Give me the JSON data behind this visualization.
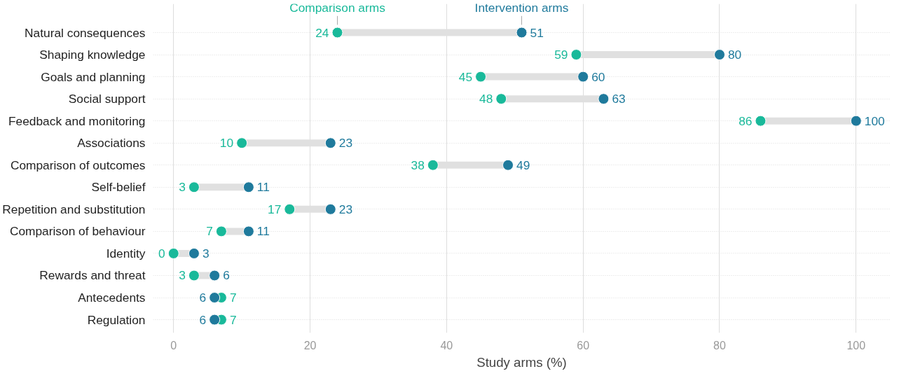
{
  "chart_data": {
    "type": "scatter",
    "orientation": "horizontal",
    "xlabel": "Study arms (%)",
    "categories": [
      "Natural consequences",
      "Shaping knowledge",
      "Goals and planning",
      "Social support",
      "Feedback and monitoring",
      "Associations",
      "Comparison of outcomes",
      "Self-belief",
      "Repetition and substitution",
      "Comparison of behaviour",
      "Identity",
      "Rewards and threat",
      "Antecedents",
      "Regulation"
    ],
    "series": [
      {
        "name": "Comparison arms",
        "color": "#19b99a",
        "values": [
          24,
          59,
          45,
          48,
          86,
          10,
          38,
          3,
          17,
          7,
          0,
          3,
          7,
          7
        ]
      },
      {
        "name": "Intervention arms",
        "color": "#1f7a9c",
        "values": [
          51,
          80,
          60,
          63,
          100,
          23,
          49,
          11,
          23,
          11,
          3,
          6,
          6,
          6
        ]
      }
    ],
    "xlim": [
      -3,
      105
    ],
    "xticks": [
      0,
      20,
      40,
      60,
      80,
      100
    ],
    "grid": true,
    "data_labels": true,
    "marker": "circle"
  }
}
